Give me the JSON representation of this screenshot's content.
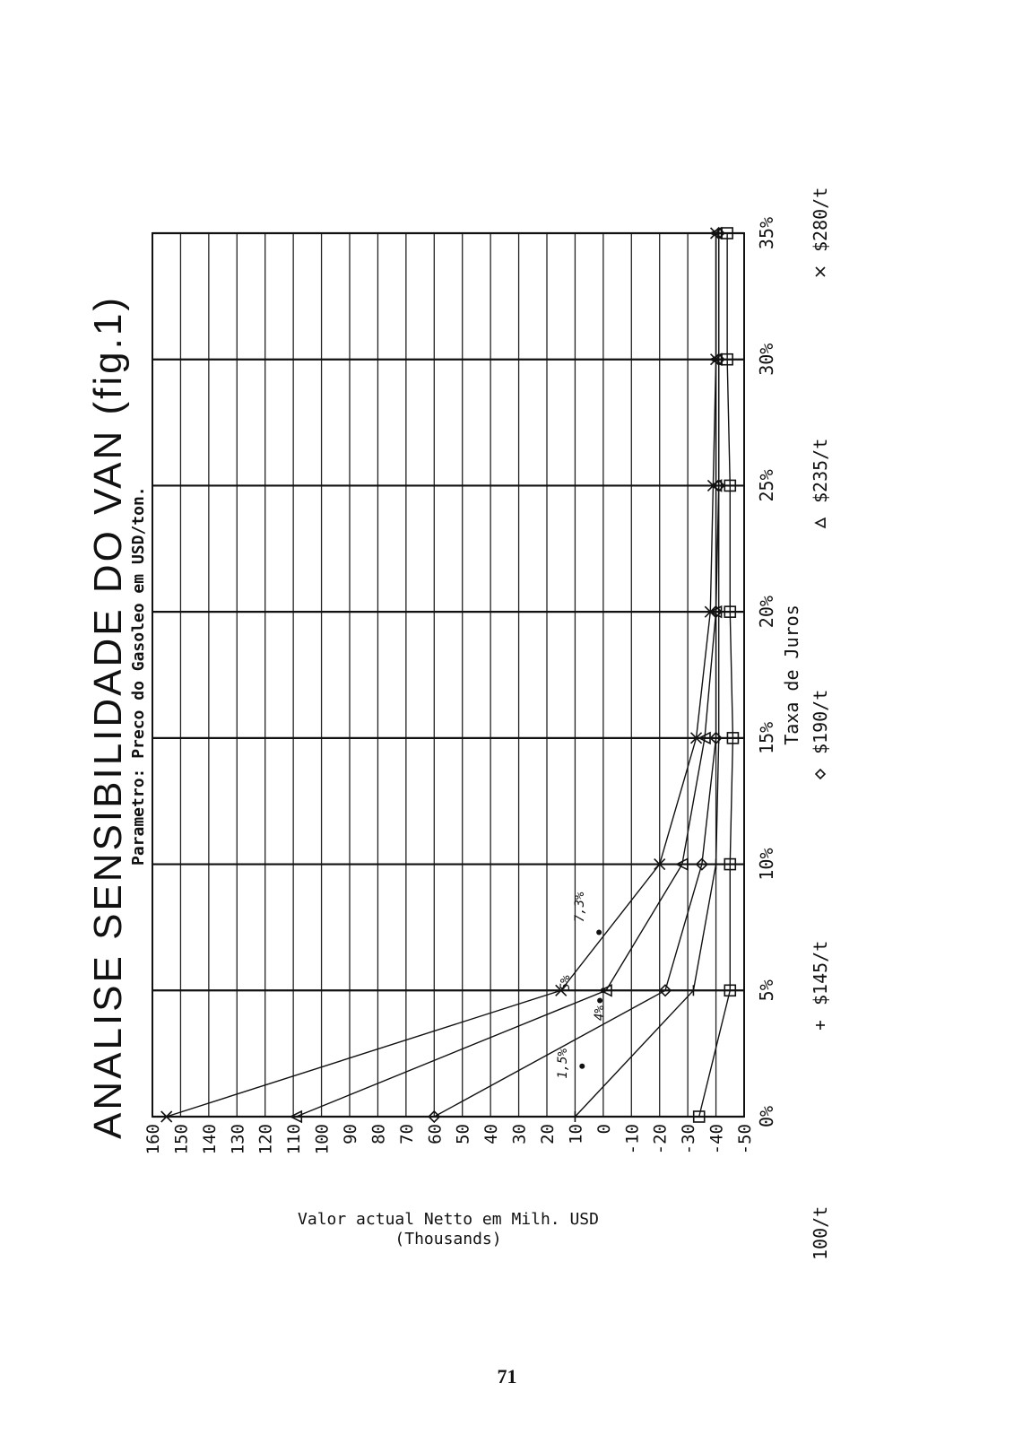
{
  "page_number": "71",
  "chart_data": {
    "type": "line",
    "title": "ANALISE SENSIBILIDADE DO VAN (fig.1)",
    "subtitle": "Parametro: Preco do Gasoleo em USD/ton.",
    "xlabel": "Taxa de Juros",
    "ylabel": "Valor actual Netto em Milh. USD",
    "ylabel_sub": "(Thousands)",
    "x": [
      0,
      5,
      10,
      15,
      20,
      25,
      30,
      35
    ],
    "x_tick_labels": [
      "0%",
      "5%",
      "10%",
      "15%",
      "20%",
      "25%",
      "30%",
      "35%"
    ],
    "ylim": [
      -50,
      160
    ],
    "y_ticks": [
      160,
      150,
      140,
      130,
      120,
      110,
      100,
      90,
      80,
      70,
      60,
      50,
      40,
      30,
      20,
      10,
      0,
      -10,
      -20,
      -30,
      -40,
      -50
    ],
    "grid": true,
    "legend_position": "bottom",
    "series": [
      {
        "name": "100/t",
        "marker": "square",
        "values": [
          -34,
          -45,
          -45,
          -46,
          -45,
          -45,
          -44,
          -44
        ]
      },
      {
        "name": "$145/t",
        "marker": "plus",
        "values": [
          10,
          -32,
          -40,
          -41,
          -41,
          -41,
          -41,
          -41
        ]
      },
      {
        "name": "$190/t",
        "marker": "diamond",
        "values": [
          60,
          -22,
          -35,
          -40,
          -40,
          -41,
          -41,
          -41
        ]
      },
      {
        "name": "$235/t",
        "marker": "triangle",
        "values": [
          109,
          -1,
          -28,
          -36,
          -40,
          -40,
          -40,
          -40
        ]
      },
      {
        "name": "$280/t",
        "marker": "x",
        "values": [
          155,
          15,
          -20,
          -33,
          -38,
          -39,
          -40,
          -40
        ]
      }
    ],
    "annotations": [
      {
        "text": "1,5%",
        "x": 2.1,
        "y": 13
      },
      {
        "text": "4%",
        "x": 4.1,
        "y": 0
      },
      {
        "text": "5%",
        "x": 5.3,
        "y": 12
      },
      {
        "text": "7,3%",
        "x": 8.3,
        "y": 7
      }
    ],
    "annotation_points": [
      {
        "x": 2.0,
        "y": 7.5
      },
      {
        "x": 4.6,
        "y": 1.2
      },
      {
        "x": 5.0,
        "y": 0
      },
      {
        "x": 7.3,
        "y": 1.5
      }
    ]
  }
}
